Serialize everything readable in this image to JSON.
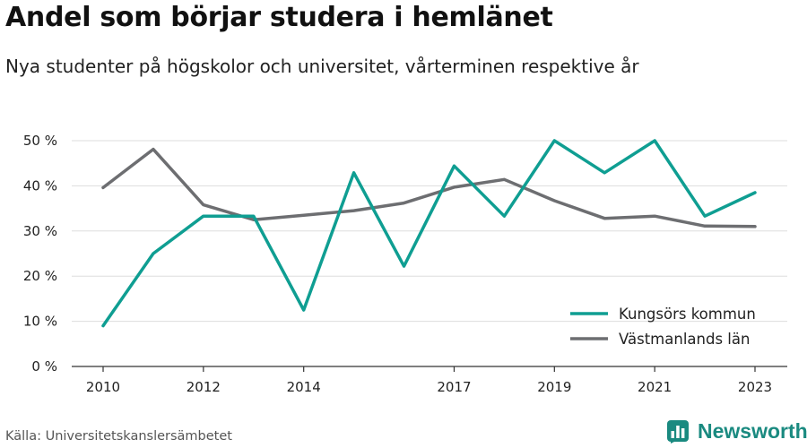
{
  "header": {
    "title": "Andel som börjar studera i hemlänet",
    "subtitle": "Nya studenter på högskolor och universitet, vårterminen respektive år"
  },
  "footer": {
    "source": "Källa: Universitetskanslersämbetet",
    "brand": "Newsworthy",
    "brand_color": "#1a8a80"
  },
  "chart_data": {
    "type": "line",
    "x": [
      2010,
      2011,
      2012,
      2013,
      2014,
      2015,
      2016,
      2017,
      2018,
      2019,
      2020,
      2021,
      2022,
      2023
    ],
    "x_ticks": [
      2010,
      2012,
      2014,
      2017,
      2019,
      2021,
      2023
    ],
    "xlim": [
      2010,
      2023
    ],
    "ylim": [
      0,
      50
    ],
    "y_ticks": [
      0,
      10,
      20,
      30,
      40,
      50
    ],
    "y_tick_suffix": " %",
    "grid": true,
    "legend_position": "bottom-right",
    "series": [
      {
        "name": "Kungsörs kommun",
        "color": "#0f9e92",
        "values": [
          9,
          25,
          33.3,
          33.3,
          12.5,
          42.9,
          22.2,
          44.4,
          33.3,
          50,
          42.9,
          50,
          33.3,
          38.5
        ]
      },
      {
        "name": "Västmanlands län",
        "color": "#6d6e71",
        "values": [
          39.6,
          48.1,
          35.8,
          32.5,
          33.5,
          34.5,
          36.2,
          39.7,
          41.4,
          36.7,
          32.8,
          33.3,
          31.1,
          31
        ]
      }
    ]
  }
}
